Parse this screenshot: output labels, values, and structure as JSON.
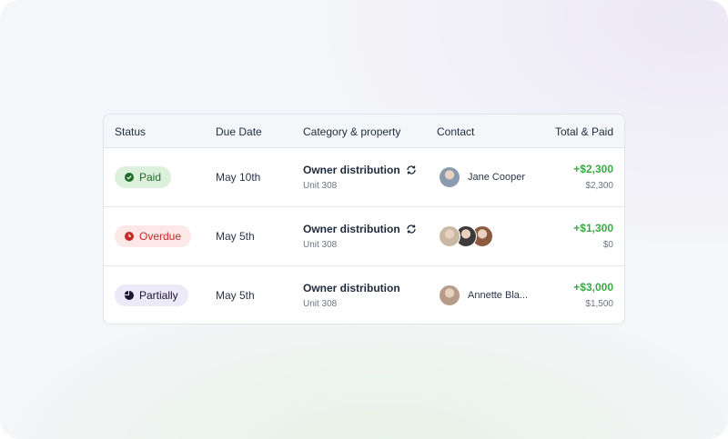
{
  "columns": [
    "Status",
    "Due Date",
    "Category & property",
    "Contact",
    "Total & Paid"
  ],
  "rows": [
    {
      "status": "Paid",
      "status_icon": "check-circle-icon",
      "bg": "#dcf1dc",
      "fg": "#1f6b2a",
      "due": "May 10th",
      "category": "Owner distribution",
      "recurring": true,
      "unit": "Unit 308",
      "contact": "Jane Cooper",
      "avatars": [
        "#8a9bb0"
      ],
      "total": "+$2,300",
      "paid": "$2,300"
    },
    {
      "status": "Overdue",
      "status_icon": "clock-icon",
      "bg": "#fde8e8",
      "fg": "#c62828",
      "due": "May 5th",
      "category": "Owner distribution",
      "recurring": true,
      "unit": "Unit 308",
      "contact": "",
      "avatars": [
        "#c9b8a4",
        "#3d3a3a",
        "#8b5a40"
      ],
      "total": "+$1,300",
      "paid": "$0"
    },
    {
      "status": "Partially",
      "status_icon": "pie-chart-icon",
      "bg": "#ece9f8",
      "fg": "#1d1633",
      "due": "May 5th",
      "category": "Owner distribution",
      "recurring": false,
      "unit": "Unit 308",
      "contact": "Annette Bla...",
      "avatars": [
        "#b89c8a"
      ],
      "total": "+$3,000",
      "paid": "$1,500"
    }
  ]
}
